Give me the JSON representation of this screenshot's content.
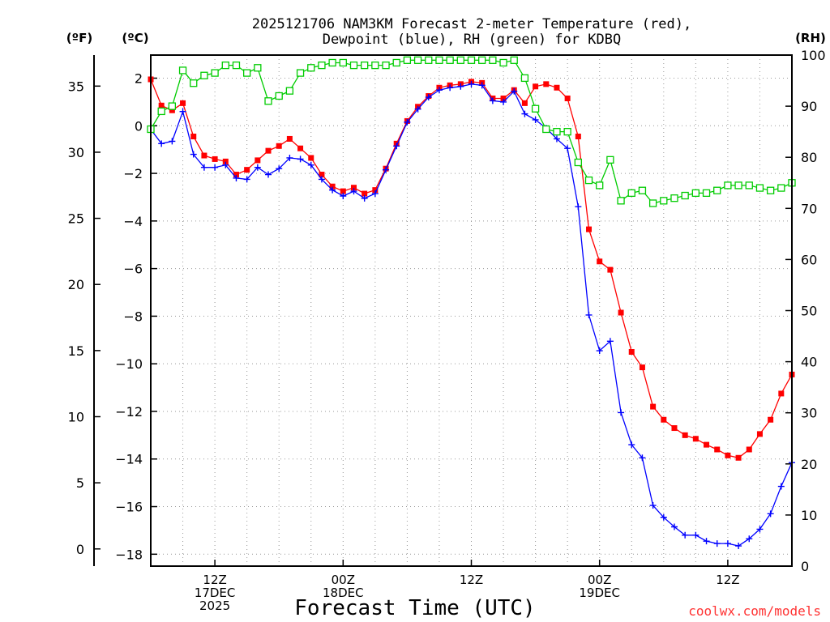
{
  "chart_data": {
    "type": "line",
    "title_line1": "2025121706 NAM3KM Forecast 2-meter Temperature (red),",
    "title_line2": "Dewpoint (blue), RH (green) for KDBQ",
    "xlabel": "Forecast Time (UTC)",
    "unit_f": "(ºF)",
    "unit_c": "(ºC)",
    "unit_rh": "(RH)",
    "credit": "coolwx.com/models",
    "x_range_hours": [
      0,
      60
    ],
    "y_range_c": [
      -18.5,
      2.97
    ],
    "y_range_rh": [
      0,
      100
    ],
    "f_ticks": [
      0,
      5,
      10,
      15,
      20,
      25,
      30,
      35
    ],
    "c_ticks": [
      -18,
      -16,
      -14,
      -12,
      -10,
      -8,
      -6,
      -4,
      -2,
      0,
      2
    ],
    "rh_ticks": [
      0,
      10,
      20,
      30,
      40,
      50,
      60,
      70,
      80,
      90,
      100
    ],
    "x_ticks": [
      {
        "hour": 6,
        "lines": [
          "12Z",
          "17DEC",
          "2025"
        ]
      },
      {
        "hour": 18,
        "lines": [
          "00Z",
          "18DEC"
        ]
      },
      {
        "hour": 30,
        "lines": [
          "12Z",
          ""
        ]
      },
      {
        "hour": 42,
        "lines": [
          "00Z",
          "19DEC"
        ]
      },
      {
        "hour": 54,
        "lines": [
          "12Z",
          ""
        ]
      }
    ],
    "hours": [
      0,
      1,
      2,
      3,
      4,
      5,
      6,
      7,
      8,
      9,
      10,
      11,
      12,
      13,
      14,
      15,
      16,
      17,
      18,
      19,
      20,
      21,
      22,
      23,
      24,
      25,
      26,
      27,
      28,
      29,
      30,
      31,
      32,
      33,
      34,
      35,
      36,
      37,
      38,
      39,
      40,
      41,
      42,
      43,
      44,
      45,
      46,
      47,
      48,
      49,
      50,
      51,
      52,
      53,
      54,
      55,
      56,
      57,
      58,
      59,
      60
    ],
    "series": [
      {
        "name": "Temperature",
        "unit": "C",
        "color": "#ff0000",
        "marker": "filled-square",
        "values": [
          1.95,
          0.85,
          0.65,
          0.95,
          -0.45,
          -1.25,
          -1.4,
          -1.5,
          -2.05,
          -1.85,
          -1.45,
          -1.05,
          -0.85,
          -0.55,
          -0.95,
          -1.35,
          -2.05,
          -2.55,
          -2.75,
          -2.6,
          -2.85,
          -2.7,
          -1.8,
          -0.75,
          0.2,
          0.8,
          1.25,
          1.6,
          1.7,
          1.75,
          1.85,
          1.8,
          1.15,
          1.15,
          1.5,
          0.95,
          1.65,
          1.75,
          1.6,
          1.15,
          -0.45,
          -4.35,
          -5.7,
          -6.05,
          -7.85,
          -9.5,
          -10.15,
          -11.8,
          -12.35,
          -12.7,
          -13.0,
          -13.15,
          -13.4,
          -13.6,
          -13.85,
          -13.95,
          -13.6,
          -12.95,
          -12.35,
          -11.25,
          -10.45
        ]
      },
      {
        "name": "Dewpoint",
        "unit": "C",
        "color": "#0000ff",
        "marker": "plus",
        "values": [
          -0.15,
          -0.75,
          -0.65,
          0.6,
          -1.2,
          -1.75,
          -1.75,
          -1.65,
          -2.2,
          -2.25,
          -1.75,
          -2.05,
          -1.8,
          -1.35,
          -1.4,
          -1.65,
          -2.25,
          -2.7,
          -2.95,
          -2.75,
          -3.05,
          -2.85,
          -1.85,
          -0.85,
          0.15,
          0.7,
          1.2,
          1.5,
          1.6,
          1.65,
          1.75,
          1.7,
          1.05,
          1.0,
          1.45,
          0.5,
          0.25,
          -0.1,
          -0.55,
          -0.95,
          -3.4,
          -7.95,
          -9.45,
          -9.05,
          -12.05,
          -13.4,
          -13.95,
          -15.95,
          -16.45,
          -16.85,
          -17.2,
          -17.2,
          -17.45,
          -17.55,
          -17.55,
          -17.65,
          -17.35,
          -16.95,
          -16.3,
          -15.15,
          -14.15
        ]
      },
      {
        "name": "Relative Humidity",
        "unit": "%",
        "color": "#00cc00",
        "marker": "open-square",
        "values": [
          85.5,
          89.0,
          90.0,
          97.0,
          94.5,
          96.0,
          96.5,
          98.0,
          98.0,
          96.5,
          97.5,
          91.0,
          92.0,
          93.0,
          96.5,
          97.5,
          98.0,
          98.5,
          98.5,
          98.0,
          98.0,
          98.0,
          98.0,
          98.5,
          99.0,
          99.0,
          99.0,
          99.0,
          99.0,
          99.0,
          99.0,
          99.0,
          99.0,
          98.5,
          99.0,
          95.5,
          89.5,
          85.5,
          85.0,
          85.0,
          79.0,
          75.5,
          74.5,
          79.5,
          71.5,
          73.0,
          73.5,
          71.0,
          71.5,
          72.0,
          72.5,
          73.0,
          73.0,
          73.5,
          74.5,
          74.5,
          74.5,
          74.0,
          73.5,
          74.0,
          75.0
        ]
      }
    ]
  }
}
